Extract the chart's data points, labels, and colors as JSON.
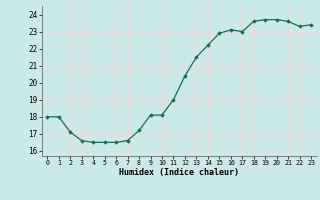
{
  "x": [
    0,
    1,
    2,
    3,
    4,
    5,
    6,
    7,
    8,
    9,
    10,
    11,
    12,
    13,
    14,
    15,
    16,
    17,
    18,
    19,
    20,
    21,
    22,
    23
  ],
  "y": [
    18.0,
    18.0,
    17.1,
    16.6,
    16.5,
    16.5,
    16.5,
    16.6,
    17.2,
    18.1,
    18.1,
    19.0,
    20.4,
    21.5,
    22.2,
    22.9,
    23.1,
    23.0,
    23.6,
    23.7,
    23.7,
    23.6,
    23.3,
    23.4
  ],
  "xlim": [
    -0.5,
    23.5
  ],
  "ylim": [
    15.7,
    24.5
  ],
  "yticks": [
    16,
    17,
    18,
    19,
    20,
    21,
    22,
    23,
    24
  ],
  "xtick_labels": [
    "0",
    "1",
    "2",
    "3",
    "4",
    "5",
    "6",
    "7",
    "8",
    "9",
    "10",
    "11",
    "12",
    "13",
    "14",
    "15",
    "16",
    "17",
    "18",
    "19",
    "20",
    "21",
    "22",
    "23"
  ],
  "xlabel": "Humidex (Indice chaleur)",
  "line_color": "#1a6b5a",
  "marker": "D",
  "marker_size": 1.8,
  "bg_color": "#cce9e9",
  "grid_color": "#e8d8d8",
  "linewidth": 0.9
}
